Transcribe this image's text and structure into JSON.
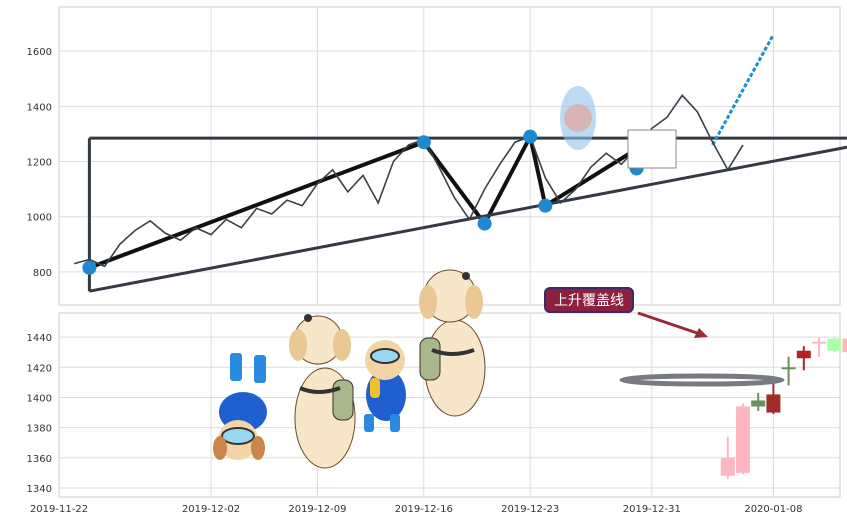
{
  "chart_data": [
    {
      "type": "line",
      "title": "",
      "xlabel": "",
      "ylabel": "",
      "ylim": [
        680,
        1760
      ],
      "xlim": [
        "2019-11-22",
        "2020-01-19"
      ],
      "grid": true,
      "yticks": [
        800,
        1000,
        1200,
        1400,
        1600
      ],
      "series": [
        {
          "values": [
            [
              "2019-11-23",
              830
            ],
            [
              "2019-11-24",
              845
            ],
            [
              "2019-11-25",
              820
            ],
            [
              "2019-11-26",
              900
            ],
            [
              "2019-11-27",
              950
            ],
            [
              "2019-11-28",
              985
            ],
            [
              "2019-11-29",
              940
            ],
            [
              "2019-11-30",
              915
            ],
            [
              "2019-12-01",
              960
            ],
            [
              "2019-12-02",
              935
            ],
            [
              "2019-12-03",
              990
            ],
            [
              "2019-12-04",
              960
            ],
            [
              "2019-12-05",
              1030
            ],
            [
              "2019-12-06",
              1010
            ],
            [
              "2019-12-07",
              1060
            ],
            [
              "2019-12-08",
              1040
            ],
            [
              "2019-12-09",
              1120
            ],
            [
              "2019-12-10",
              1170
            ],
            [
              "2019-12-11",
              1090
            ],
            [
              "2019-12-12",
              1150
            ],
            [
              "2019-12-13",
              1050
            ],
            [
              "2019-12-14",
              1200
            ],
            [
              "2019-12-15",
              1260
            ],
            [
              "2019-12-16",
              1280
            ],
            [
              "2019-12-17",
              1180
            ],
            [
              "2019-12-18",
              1070
            ],
            [
              "2019-12-19",
              990
            ],
            [
              "2019-12-20",
              1100
            ],
            [
              "2019-12-21",
              1190
            ],
            [
              "2019-12-22",
              1270
            ],
            [
              "2019-12-23",
              1290
            ],
            [
              "2019-12-24",
              1140
            ],
            [
              "2019-12-25",
              1050
            ],
            [
              "2019-12-26",
              1100
            ],
            [
              "2019-12-27",
              1180
            ],
            [
              "2019-12-28",
              1230
            ],
            [
              "2019-12-29",
              1190
            ],
            [
              "2019-12-30",
              1250
            ],
            [
              "2019-12-31",
              1320
            ],
            [
              "2020-01-01",
              1360
            ],
            [
              "2020-01-02",
              1440
            ],
            [
              "2020-01-03",
              1380
            ],
            [
              "2020-01-04",
              1270
            ],
            [
              "2020-01-05",
              1170
            ],
            [
              "2020-01-06",
              1260
            ]
          ]
        }
      ],
      "overlay_lines": [
        {
          "points": [
            [
              "2019-11-24",
              815
            ],
            [
              "2019-12-16",
              1270
            ],
            [
              "2019-12-20",
              975
            ],
            [
              "2019-12-23",
              1290
            ],
            [
              "2019-12-24",
              1040
            ],
            [
              "2019-12-30",
              1245
            ]
          ]
        },
        {
          "points": [
            [
              "2019-11-24",
              730
            ],
            [
              "2020-01-16",
              1285
            ]
          ]
        },
        {
          "points": [
            [
              "2019-11-24",
              1285
            ],
            [
              "2020-01-16",
              1285
            ]
          ]
        },
        {
          "points": [
            [
              "2019-11-24",
              1285
            ],
            [
              "2019-11-24",
              730
            ]
          ]
        },
        {
          "points": [
            [
              "2020-01-04",
              1260
            ],
            [
              "2020-01-08",
              1660
            ]
          ]
        }
      ],
      "pivot_points": [
        [
          "2019-11-24",
          815
        ],
        [
          "2019-12-16",
          1270
        ],
        [
          "2019-12-20",
          975
        ],
        [
          "2019-12-23",
          1290
        ],
        [
          "2019-12-24",
          1040
        ],
        [
          "2019-12-30",
          1245
        ],
        [
          "2019-12-30",
          1175
        ]
      ]
    },
    {
      "type": "candlestick",
      "title": "",
      "ylim": [
        1334,
        1456
      ],
      "yticks": [
        1340,
        1360,
        1380,
        1400,
        1420,
        1440
      ],
      "xticks": [
        "2019-11-22",
        "2019-12-02",
        "2019-12-09",
        "2019-12-16",
        "2019-12-23",
        "2019-12-31",
        "2020-01-08",
        "2020-01-15"
      ],
      "candles": [
        {
          "date": "2020-01-05",
          "open": 1348,
          "close": 1360,
          "high": 1374,
          "low": 1346
        },
        {
          "date": "2020-01-06",
          "open": 1350,
          "close": 1394,
          "high": 1396,
          "low": 1349
        },
        {
          "date": "2020-01-07",
          "open": 1394,
          "close": 1398,
          "high": 1403,
          "low": 1391
        },
        {
          "date": "2020-01-08",
          "open": 1402,
          "close": 1390,
          "high": 1412,
          "low": 1389
        },
        {
          "date": "2020-01-09",
          "open": 1420,
          "close": 1420,
          "high": 1427,
          "low": 1408
        },
        {
          "date": "2020-01-10",
          "open": 1426,
          "close": 1431,
          "high": 1434,
          "low": 1418
        },
        {
          "date": "2020-01-11",
          "open": 1437,
          "close": 1437,
          "high": 1440,
          "low": 1427
        },
        {
          "date": "2020-01-12",
          "open": 1431,
          "close": 1439,
          "high": 1440,
          "low": 1430
        },
        {
          "date": "2020-01-13",
          "open": 1430,
          "close": 1439,
          "high": 1442,
          "low": 1429
        }
      ],
      "annotations": [
        {
          "text": "上升覆盖线"
        }
      ],
      "colors": {
        "up": "#ffb6c1",
        "down": "#a52a2a",
        "doji_up": "#b22222",
        "green": "#6a8f5a",
        "light_green": "#aaffaa"
      }
    }
  ]
}
